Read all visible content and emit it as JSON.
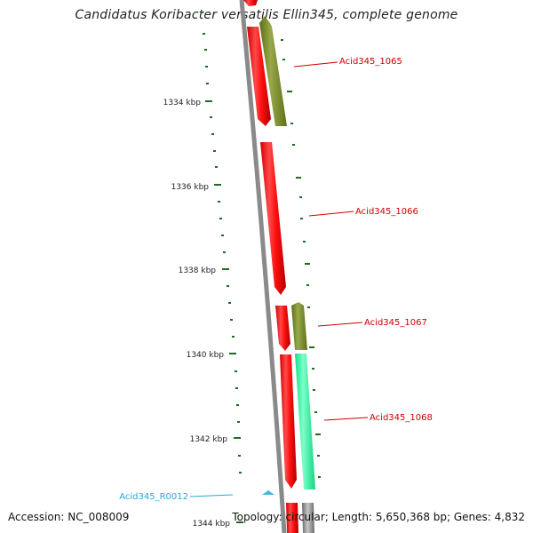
{
  "title": "Candidatus Koribacter versatilis Ellin345, complete genome",
  "colors": {
    "backbone": "#8a8a8a",
    "tick": "#1f6b1f",
    "forward_cds": "#ff1010",
    "reverse_cds": "#7a8c25",
    "reverse_cds_alt": "#1aff9a",
    "gene_label": "#cc0000",
    "rna_label": "#22aadd",
    "rna_feature": "#44b8e0"
  },
  "ticks": [
    {
      "label": "1334 kbp"
    },
    {
      "label": "1336 kbp"
    },
    {
      "label": "1338 kbp"
    },
    {
      "label": "1340 kbp"
    },
    {
      "label": "1342 kbp"
    },
    {
      "label": "1344 kbp"
    }
  ],
  "gene_labels": [
    {
      "label": "Acid345_1065",
      "type": "cds"
    },
    {
      "label": "Acid345_1066",
      "type": "cds"
    },
    {
      "label": "Acid345_1067",
      "type": "cds"
    },
    {
      "label": "Acid345_1068",
      "type": "cds"
    },
    {
      "label": "Acid345_R0012",
      "type": "rna"
    }
  ],
  "footer": {
    "accession": "Accession: NC_008009",
    "summary": "Topology: circular; Length: 5,650,368 bp; Genes: 4,832"
  }
}
